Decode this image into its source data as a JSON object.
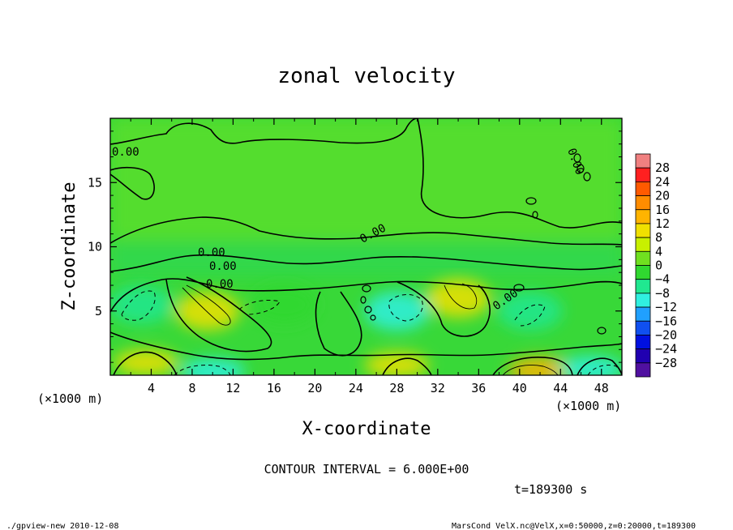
{
  "chart_data": {
    "type": "heatmap",
    "title": "zonal velocity",
    "xlabel": "X-coordinate",
    "ylabel": "Z-coordinate",
    "x_unit": "(×1000 m)",
    "y_unit": "(×1000 m)",
    "xlim": [
      0,
      50
    ],
    "ylim": [
      0,
      20
    ],
    "x_ticks": [
      4,
      8,
      12,
      16,
      20,
      24,
      28,
      32,
      36,
      40,
      44,
      48
    ],
    "y_ticks": [
      5,
      10,
      15
    ],
    "contour_interval_text": "CONTOUR INTERVAL = 6.000E+00",
    "contour_labels": [
      "0.00",
      "0.00",
      "0.00",
      "0.00",
      "0.00",
      "0.00",
      "0.00"
    ],
    "time_text": "t=189300 s",
    "colorbar": {
      "levels": [
        28,
        24,
        20,
        16,
        12,
        8,
        4,
        0,
        -4,
        -8,
        -12,
        -16,
        -20,
        -24,
        -28
      ],
      "colors": [
        "#f08080",
        "#ff2020",
        "#ff5a00",
        "#ff8c00",
        "#ffb400",
        "#f0e000",
        "#c8f000",
        "#70e020",
        "#30d830",
        "#20e890",
        "#30f0e0",
        "#20a0ff",
        "#1050f0",
        "#0010e0",
        "#2000b0",
        "#5010a0"
      ],
      "labels": [
        "28",
        "24",
        "20",
        "16",
        "12",
        "8",
        "4",
        "0",
        "−4",
        "−8",
        "−12",
        "−16",
        "−20",
        "−24",
        "−28"
      ]
    },
    "regions": [
      {
        "kind": "negative",
        "x": 3,
        "z": 5.5,
        "value": -8
      },
      {
        "kind": "positive",
        "x": 9.5,
        "z": 5,
        "value": 8
      },
      {
        "kind": "negative",
        "x": 17,
        "z": 5.5,
        "value": -4
      },
      {
        "kind": "negative",
        "x": 28,
        "z": 5,
        "value": -10
      },
      {
        "kind": "positive",
        "x": 34,
        "z": 6,
        "value": 10
      },
      {
        "kind": "negative",
        "x": 41,
        "z": 5,
        "value": -6
      },
      {
        "kind": "positive",
        "x": 3.5,
        "z": 1,
        "value": 8
      },
      {
        "kind": "negative",
        "x": 10,
        "z": 0.3,
        "value": -10
      },
      {
        "kind": "positive",
        "x": 28,
        "z": 0.8,
        "value": 8
      },
      {
        "kind": "positive",
        "x": 42,
        "z": 0.4,
        "value": 14
      },
      {
        "kind": "negative",
        "x": 47,
        "z": 0.5,
        "value": -10
      }
    ]
  },
  "footer": {
    "left": "./gpview-new  2010-12-08",
    "right": "MarsCond_VelX.nc@VelX,x=0:50000,z=0:20000,t=189300"
  }
}
